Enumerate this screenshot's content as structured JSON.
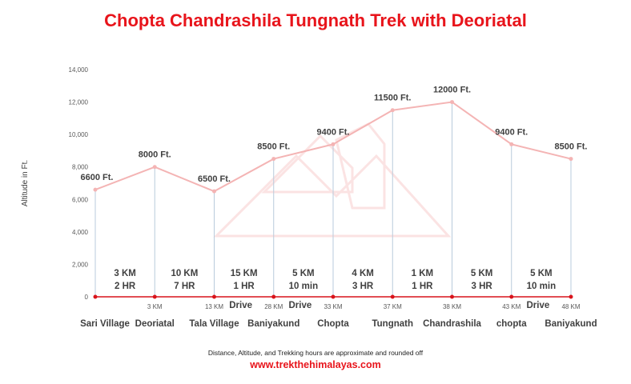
{
  "chart_data": {
    "type": "line",
    "title": "Chopta Chandrashila Tungnath Trek with Deoriatal",
    "ylabel": "Altitude in Ft.",
    "xlabel": "",
    "ylim": [
      0,
      14000
    ],
    "yticks": [
      "0",
      "2,000",
      "4,000",
      "6,000",
      "8,000",
      "10,000",
      "12,000",
      "14,000"
    ],
    "grid": false,
    "line_color": "#f4b4b4",
    "baseline_color": "#d9141b",
    "categories": [
      "Sari Village",
      "Deoriatal",
      "Tala Village",
      "Baniyakund",
      "Chopta",
      "Tungnath",
      "Chandrashila",
      "chopta",
      "Baniyakund"
    ],
    "values": [
      6600,
      8000,
      6500,
      8500,
      9400,
      11500,
      12000,
      9400,
      8500
    ],
    "altitude_labels": [
      "6600 Ft.",
      "8000 Ft.",
      "6500 Ft.",
      "8500 Ft.",
      "9400 Ft.",
      "11500 Ft.",
      "12000 Ft.",
      "9400 Ft.",
      "8500 Ft."
    ],
    "cumulative_distance_labels": [
      "",
      "3 KM",
      "13 KM",
      "28 KM",
      "33 KM",
      "37 KM",
      "38 KM",
      "43 KM",
      "48 KM"
    ],
    "segments": [
      {
        "distance": "3 KM",
        "time": "2 HR",
        "mode": ""
      },
      {
        "distance": "10 KM",
        "time": "7 HR",
        "mode": ""
      },
      {
        "distance": "15 KM",
        "time": "1 HR",
        "mode": "Drive"
      },
      {
        "distance": "5 KM",
        "time": "10 min",
        "mode": "Drive"
      },
      {
        "distance": "4 KM",
        "time": "3 HR",
        "mode": ""
      },
      {
        "distance": "1 KM",
        "time": "1 HR",
        "mode": ""
      },
      {
        "distance": "5 KM",
        "time": "3 HR",
        "mode": ""
      },
      {
        "distance": "5 KM",
        "time": "10 min",
        "mode": "Drive"
      }
    ]
  },
  "footer": {
    "note": "Distance, Altitude, and Trekking hours are approximate and rounded off",
    "website": "www.trekthehimalayas.com"
  }
}
